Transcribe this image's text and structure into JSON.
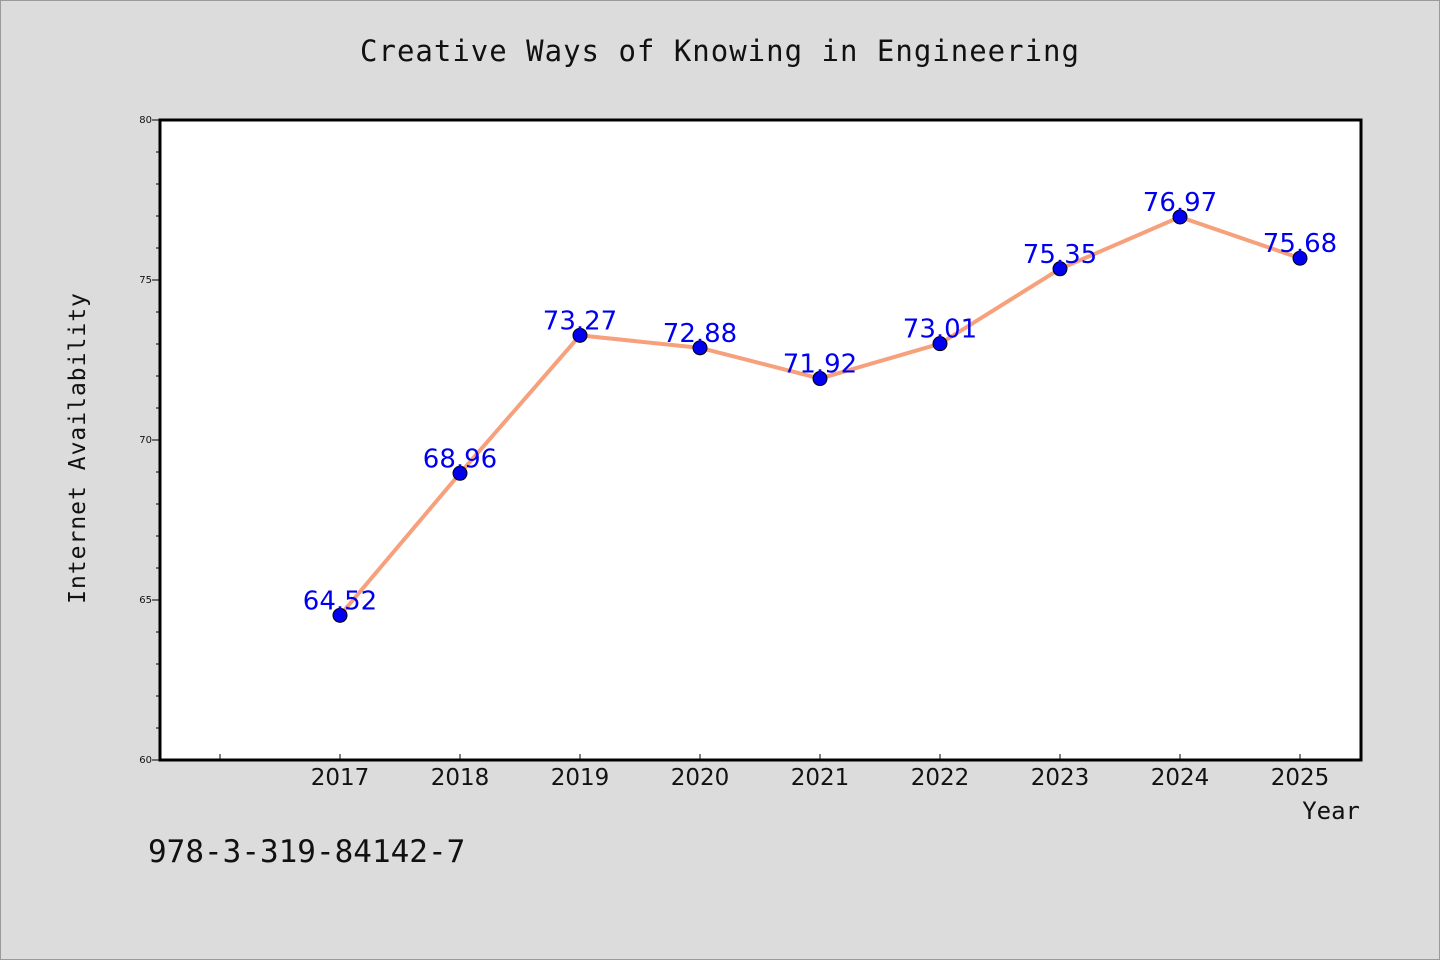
{
  "chart_data": {
    "type": "line",
    "title": "Creative Ways of Knowing in Engineering",
    "xlabel": "Year",
    "ylabel": "Internet Availability",
    "categories": [
      "2017",
      "2018",
      "2019",
      "2020",
      "2021",
      "2022",
      "2023",
      "2024",
      "2025"
    ],
    "series": [
      {
        "values": [
          64.52,
          68.96,
          73.27,
          72.88,
          71.92,
          73.01,
          75.35,
          76.97,
          75.68
        ],
        "data_labels": [
          "64.52",
          "68.96",
          "73.27",
          "72.88",
          "71.92",
          "73.01",
          "75.35",
          "76.97",
          "75.68"
        ]
      }
    ],
    "ylim": [
      60,
      80
    ],
    "y_major_ticks": [
      "60",
      "65",
      "70",
      "75",
      "80"
    ],
    "y_minor_tick_step": 1,
    "grid": false,
    "legend": "none",
    "line_color": "#f7a07c",
    "marker_color": "#0000ee",
    "label_color": "#0000ee",
    "plot_background": "#ffffff",
    "page_background": "#dcdcdc"
  },
  "footer": {
    "note": "978-3-319-84142-7"
  }
}
